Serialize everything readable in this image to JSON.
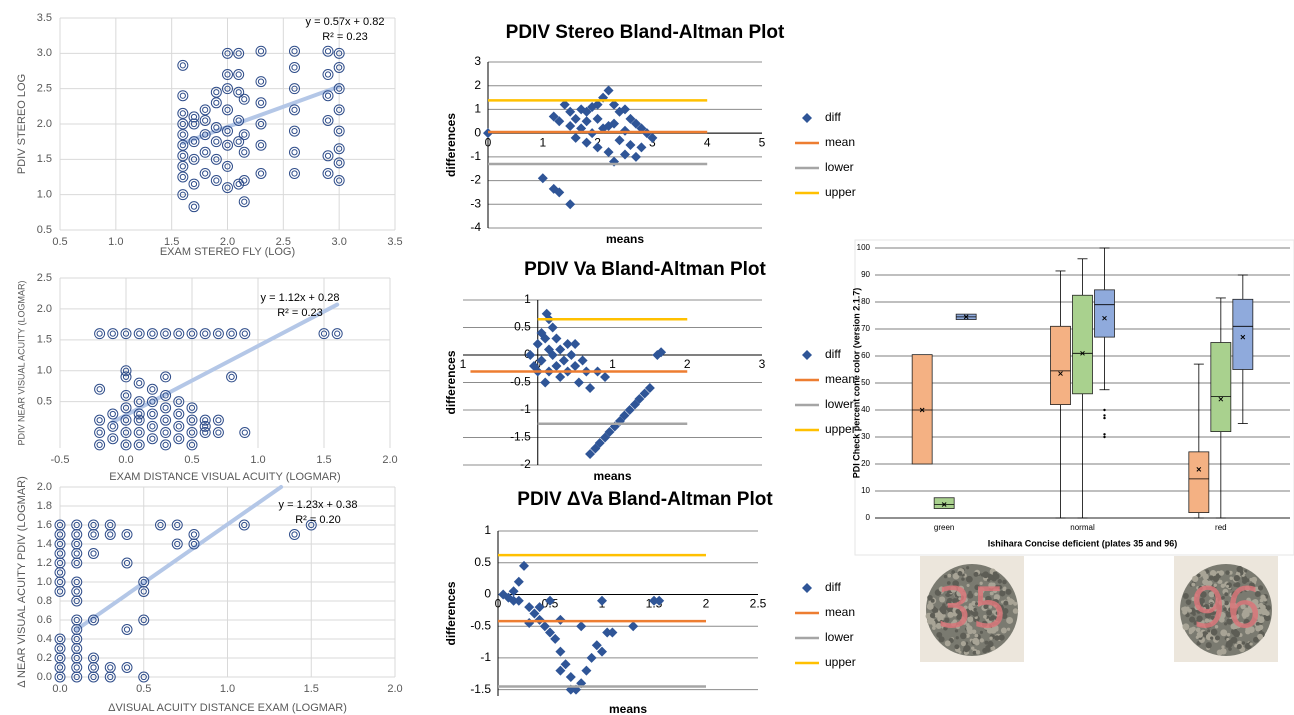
{
  "chart_data": [
    {
      "type": "scatter",
      "xlabel": "EXAM STEREO FLY (LOG)",
      "ylabel": "PDIV STEREO LOG",
      "xlim": [
        0.5,
        3.5
      ],
      "ylim": [
        0.5,
        3.5
      ],
      "xticks": [
        0.5,
        {
          "value": 1,
          "label": "1.0"
        },
        1.5,
        {
          "value": 2,
          "label": "2.0"
        },
        2.5,
        {
          "value": 3,
          "label": "3.0"
        },
        3.5
      ],
      "yticks": [
        0.5,
        {
          "value": 1,
          "label": "1.0"
        },
        1.5,
        {
          "value": 2,
          "label": "2.0"
        },
        2.5,
        {
          "value": 3,
          "label": "3.0"
        },
        3.5
      ],
      "grid": "both",
      "grid_color": "#d9d9d9",
      "color": "#2f4d8a",
      "xaxis_position": "bottom",
      "x": [
        1.6,
        1.6,
        1.6,
        1.6,
        1.6,
        1.6,
        1.6,
        1.6,
        1.6,
        1.6,
        1.7,
        1.7,
        1.7,
        1.7,
        1.7,
        1.7,
        1.8,
        1.8,
        1.8,
        1.8,
        1.8,
        1.9,
        1.9,
        1.9,
        1.9,
        1.9,
        1.9,
        2.0,
        2.0,
        2.0,
        2.0,
        2.0,
        2.0,
        2.0,
        2.0,
        2.1,
        2.1,
        2.1,
        2.1,
        2.1,
        2.1,
        2.15,
        2.15,
        2.15,
        2.15,
        2.15,
        2.3,
        2.3,
        2.3,
        2.3,
        2.3,
        2.3,
        2.6,
        2.6,
        2.6,
        2.6,
        2.6,
        2.6,
        2.6,
        2.9,
        2.9,
        2.9,
        2.9,
        2.9,
        2.9,
        3.0,
        3.0,
        3.0,
        3.0,
        3.0,
        3.0,
        3.0,
        3.0
      ],
      "values": [
        1.0,
        1.25,
        1.4,
        1.55,
        1.7,
        1.85,
        2.0,
        2.15,
        2.4,
        2.83,
        0.83,
        1.15,
        1.5,
        1.75,
        2.0,
        2.1,
        1.3,
        1.6,
        1.85,
        2.05,
        2.2,
        1.2,
        1.5,
        1.75,
        1.95,
        2.3,
        2.45,
        1.1,
        1.4,
        1.7,
        1.9,
        2.2,
        2.5,
        2.7,
        3.0,
        1.15,
        1.75,
        2.05,
        2.45,
        2.7,
        3.0,
        0.9,
        1.2,
        1.6,
        1.85,
        2.35,
        1.3,
        1.7,
        2.0,
        2.3,
        2.6,
        3.03,
        1.3,
        1.6,
        1.9,
        2.2,
        2.5,
        2.8,
        3.03,
        1.3,
        1.55,
        2.05,
        2.4,
        2.7,
        3.03,
        1.2,
        1.45,
        1.65,
        1.9,
        2.2,
        2.5,
        2.8,
        3.0
      ],
      "trendline": {
        "color": "#b4c7e7",
        "x": [
          1.6,
          3.0
        ],
        "y": [
          1.73,
          2.53
        ]
      },
      "annotations": [
        "y = 0.57x + 0.82",
        "R² = 0.23"
      ]
    },
    {
      "type": "scatter",
      "xlabel": "EXAM DISTANCE VISUAL ACUITY (LOGMAR)",
      "ylabel": "PDIV NEAR VISUAL ACUITY (LOGMAR)",
      "xlim": [
        -0.5,
        2.0
      ],
      "ylim": [
        -0.25,
        2.5
      ],
      "xticks": [
        -0.5,
        {
          "value": 0,
          "label": "0.0"
        },
        0.5,
        {
          "value": 1,
          "label": "1.0"
        },
        1.5,
        {
          "value": 2,
          "label": "2.0"
        }
      ],
      "yticks": [
        0.5,
        {
          "value": 1,
          "label": "1.0"
        },
        1.5,
        {
          "value": 2,
          "label": "2.0"
        },
        2.5
      ],
      "grid": "both",
      "grid_color": "#d9d9d9",
      "color": "#2f4d8a",
      "xaxis_position": "bottom",
      "x": [
        -0.2,
        -0.1,
        0,
        0.1,
        0.2,
        0.3,
        0.4,
        0.5,
        0.6,
        0.7,
        0.8,
        0.9,
        1.5,
        1.6,
        -0.2,
        -0.2,
        -0.2,
        -0.2,
        -0.1,
        -0.1,
        -0.1,
        0,
        0,
        0,
        0,
        0,
        0,
        0,
        0.1,
        0.1,
        0.1,
        0.1,
        0.1,
        0.1,
        0.2,
        0.2,
        0.2,
        0.2,
        0.2,
        0.3,
        0.3,
        0.3,
        0.3,
        0.3,
        0.3,
        0.4,
        0.4,
        0.4,
        0.4,
        0.5,
        0.5,
        0.5,
        0.5,
        0.6,
        0.6,
        0.6,
        0.7,
        0.7,
        0.8,
        0.9
      ],
      "values": [
        1.6,
        1.6,
        1.6,
        1.6,
        1.6,
        1.6,
        1.6,
        1.6,
        1.6,
        1.6,
        1.6,
        1.6,
        1.6,
        1.6,
        -0.2,
        0,
        0.2,
        0.7,
        -0.1,
        0.1,
        0.3,
        -0.2,
        0,
        0.2,
        0.4,
        0.6,
        0.9,
        1.0,
        -0.2,
        0,
        0.2,
        0.3,
        0.5,
        0.8,
        -0.1,
        0.1,
        0.3,
        0.5,
        0.7,
        -0.2,
        0,
        0.2,
        0.4,
        0.6,
        0.9,
        -0.1,
        0.1,
        0.3,
        0.5,
        -0.2,
        0,
        0.2,
        0.4,
        0,
        0.1,
        0.2,
        0,
        0.2,
        0.9,
        0
      ],
      "trendline": {
        "color": "#b4c7e7",
        "x": [
          -0.1,
          1.6
        ],
        "y": [
          0.17,
          2.07
        ]
      },
      "annotations": [
        "y = 1.12x + 0.28",
        "R² = 0.23"
      ]
    },
    {
      "type": "scatter",
      "xlabel": "ΔVISUAL ACUITY DISTANCE EXAM (LOGMAR)",
      "ylabel": "Δ NEAR VISUAL ACUITY PDIV (LOGMAR)",
      "xlim": [
        0,
        2.0
      ],
      "ylim": [
        0,
        2.0
      ],
      "xticks": [
        {
          "value": 0,
          "label": "0.0"
        },
        0.5,
        {
          "value": 1,
          "label": "1.0"
        },
        1.5,
        {
          "value": 2,
          "label": "2.0"
        }
      ],
      "yticks": [
        {
          "value": 0,
          "label": "0.0"
        },
        0.2,
        0.4,
        0.6,
        0.8,
        {
          "value": 1,
          "label": "1.0"
        },
        1.2,
        1.4,
        1.6,
        1.8,
        {
          "value": 2,
          "label": "2.0"
        }
      ],
      "grid": "both",
      "grid_color": "#d9d9d9",
      "color": "#2f4d8a",
      "xaxis_position": "bottom",
      "x": [
        0,
        0,
        0,
        0,
        0,
        0,
        0,
        0,
        0,
        0,
        0,
        0,
        0,
        0.1,
        0.1,
        0.1,
        0.1,
        0.1,
        0.1,
        0.1,
        0.1,
        0.1,
        0.1,
        0.1,
        0.1,
        0.1,
        0.1,
        0.1,
        0.2,
        0.2,
        0.2,
        0.2,
        0.2,
        0.2,
        0.2,
        0.3,
        0.3,
        0.3,
        0.3,
        0.4,
        0.4,
        0.4,
        0.4,
        0.5,
        0.5,
        0.5,
        0.5,
        0.6,
        0.7,
        0.7,
        0.8,
        0.8,
        1.1,
        1.4,
        1.5
      ],
      "values": [
        0,
        0.1,
        0.2,
        0.3,
        0.4,
        0.9,
        1.0,
        1.1,
        1.2,
        1.3,
        1.4,
        1.5,
        1.6,
        0,
        0.1,
        0.2,
        0.3,
        0.4,
        0.5,
        0.6,
        0.8,
        0.9,
        1.0,
        1.2,
        1.3,
        1.4,
        1.5,
        1.6,
        0,
        0.1,
        0.2,
        0.6,
        1.3,
        1.5,
        1.6,
        0,
        0.1,
        1.5,
        1.6,
        0.1,
        0.5,
        1.2,
        1.5,
        0,
        0.6,
        0.9,
        1.0,
        1.6,
        1.4,
        1.6,
        1.4,
        1.5,
        1.6,
        1.5,
        1.6
      ],
      "trendline": {
        "color": "#b4c7e7",
        "x": [
          0.1,
          1.32
        ],
        "y": [
          0.5,
          2.0
        ]
      },
      "annotations": [
        "y = 1.23x + 0.38",
        "R² = 0.20"
      ]
    },
    {
      "type": "scatter",
      "title": "PDIV Stereo Bland-Altman Plot",
      "xlabel": "means",
      "ylabel": "differences",
      "xlim": [
        0,
        5
      ],
      "ylim": [
        -4,
        3
      ],
      "xticks": [
        0,
        1,
        2,
        3,
        4,
        5
      ],
      "yticks": [
        -4,
        -3,
        -2,
        -1,
        0,
        1,
        2,
        3
      ],
      "grid": "y",
      "grid_color": "#8c8c8c",
      "xaxis_position": "zero",
      "series": [
        {
          "name": "diff",
          "color": "#2f5597",
          "mode": "markers",
          "x": [
            0,
            1.0,
            1.2,
            1.3,
            1.5,
            1.2,
            1.3,
            1.4,
            1.5,
            1.5,
            1.6,
            1.6,
            1.7,
            1.7,
            1.8,
            1.8,
            1.9,
            1.9,
            2.0,
            2.0,
            2.1,
            2.1,
            2.2,
            2.2,
            2.3,
            2.3,
            2.3,
            2.4,
            2.4,
            2.5,
            2.5,
            2.5,
            2.6,
            2.6,
            2.7,
            2.7,
            2.8,
            2.8,
            2.9,
            3.0,
            2.0,
            1.8,
            2.2
          ],
          "values": [
            0,
            -1.9,
            -2.35,
            -2.5,
            -3.0,
            0.7,
            0.5,
            1.2,
            0.9,
            0.3,
            0.6,
            -0.2,
            1.0,
            0.2,
            0.5,
            -0.4,
            1.1,
            0.0,
            0.6,
            -0.6,
            1.5,
            0.2,
            1.8,
            -0.8,
            1.2,
            0.4,
            -1.2,
            0.9,
            -0.3,
            1.0,
            0.1,
            -0.9,
            0.6,
            -0.5,
            0.4,
            -1.0,
            0.2,
            -0.6,
            0.0,
            -0.2,
            1.2,
            0.9,
            0.3
          ]
        },
        {
          "name": "mean",
          "color": "#ed7d31",
          "mode": "line",
          "x": [
            0,
            4
          ],
          "values": [
            0.05,
            0.05
          ]
        },
        {
          "name": "lower",
          "color": "#a5a5a5",
          "mode": "line",
          "x": [
            0,
            4
          ],
          "values": [
            -1.3,
            -1.3
          ]
        },
        {
          "name": "upper",
          "color": "#ffc000",
          "mode": "line",
          "x": [
            0,
            4
          ],
          "values": [
            1.38,
            1.38
          ]
        }
      ]
    },
    {
      "type": "scatter",
      "title": "PDIV Va Bland-Altman Plot",
      "xlabel": "means",
      "ylabel": "differences",
      "xlim": [
        -1,
        3
      ],
      "ylim": [
        -2,
        1
      ],
      "xticks": [
        {
          "value": -1,
          "label": "1"
        },
        0,
        1,
        2,
        3
      ],
      "yticks": [
        -2,
        -1.5,
        -1,
        -0.5,
        0,
        0.5,
        1
      ],
      "grid": "y",
      "grid_color": "#8c8c8c",
      "xaxis_position": "zero",
      "series": [
        {
          "name": "diff",
          "color": "#2f5597",
          "mode": "markers",
          "x": [
            -0.1,
            -0.05,
            0,
            0,
            0.05,
            0.05,
            0.1,
            0.1,
            0.15,
            0.15,
            0.2,
            0.2,
            0.25,
            0.25,
            0.3,
            0.3,
            0.35,
            0.4,
            0.4,
            0.45,
            0.5,
            0.55,
            0.6,
            0.65,
            0.12,
            0.15,
            0.5,
            0.7,
            0.8,
            0.9,
            1.6,
            1.65,
            0.7,
            0.77,
            0.83,
            0.9,
            0.96,
            1.03,
            1.1,
            1.16,
            1.23,
            1.3,
            1.36,
            1.43,
            1.5
          ],
          "values": [
            0,
            -0.2,
            0.2,
            -0.3,
            0.4,
            -0.1,
            0.3,
            -0.5,
            0.1,
            -0.3,
            0.5,
            0,
            -0.2,
            0.3,
            0.1,
            -0.4,
            -0.1,
            0.2,
            -0.3,
            0,
            -0.2,
            -0.5,
            -0.1,
            -0.3,
            0.75,
            0.65,
            0.2,
            -0.6,
            -0.3,
            -0.4,
            0,
            0.05,
            -1.8,
            -1.7,
            -1.6,
            -1.5,
            -1.4,
            -1.3,
            -1.2,
            -1.1,
            -1.0,
            -0.9,
            -0.8,
            -0.7,
            -0.6
          ]
        },
        {
          "name": "mean",
          "color": "#ed7d31",
          "mode": "line",
          "x": [
            -0.9,
            2
          ],
          "values": [
            -0.3,
            -0.3
          ]
        },
        {
          "name": "lower",
          "color": "#a5a5a5",
          "mode": "line",
          "x": [
            0,
            2
          ],
          "values": [
            -1.25,
            -1.25
          ]
        },
        {
          "name": "upper",
          "color": "#ffc000",
          "mode": "line",
          "x": [
            0,
            2
          ],
          "values": [
            0.65,
            0.65
          ]
        }
      ]
    },
    {
      "type": "scatter",
      "title": "PDIV ΔVa Bland-Altman Plot",
      "xlabel": "means",
      "ylabel": "differences",
      "xlim": [
        0,
        2.5
      ],
      "ylim": [
        -1.6,
        1
      ],
      "xticks": [
        0,
        0.5,
        1,
        1.5,
        2,
        2.5
      ],
      "yticks": [
        -1.5,
        -1,
        -0.5,
        0,
        0.5,
        1
      ],
      "grid": "y",
      "grid_color": "#8c8c8c",
      "xaxis_position": "zero",
      "series": [
        {
          "name": "diff",
          "color": "#2f5597",
          "mode": "markers",
          "x": [
            0.05,
            0.1,
            0.15,
            0.2,
            0.25,
            0.2,
            0.3,
            0.35,
            0.4,
            0.4,
            0.45,
            0.5,
            0.5,
            0.55,
            0.6,
            0.6,
            0.65,
            0.7,
            0.75,
            0.7,
            0.8,
            0.85,
            0.9,
            0.95,
            1.0,
            1.05,
            1.1,
            0.3,
            0.8,
            1.0,
            1.3,
            1.5,
            1.55,
            0.15,
            0.6
          ],
          "values": [
            0,
            -0.05,
            0.05,
            0.2,
            0.45,
            -0.1,
            -0.2,
            -0.3,
            -0.2,
            -0.4,
            -0.5,
            -0.1,
            -0.6,
            -0.7,
            -0.4,
            -0.9,
            -1.1,
            -1.3,
            -1.5,
            -1.5,
            -1.4,
            -1.2,
            -1.0,
            -0.8,
            -0.9,
            -0.6,
            -0.6,
            -0.45,
            -0.5,
            -0.1,
            -0.5,
            -0.1,
            -0.1,
            -0.1,
            -1.2
          ]
        },
        {
          "name": "mean",
          "color": "#ed7d31",
          "mode": "line",
          "x": [
            0,
            2
          ],
          "values": [
            -0.42,
            -0.42
          ]
        },
        {
          "name": "lower",
          "color": "#a5a5a5",
          "mode": "line",
          "x": [
            0,
            2
          ],
          "values": [
            -1.45,
            -1.45
          ]
        },
        {
          "name": "upper",
          "color": "#ffc000",
          "mode": "line",
          "x": [
            0,
            2
          ],
          "values": [
            0.62,
            0.62
          ]
        }
      ]
    },
    {
      "type": "box",
      "ylabel": "PDI Check percent cone color (version 2.1.7)",
      "xlabel": "Ishihara Concise deficient (plates 35 and 96)",
      "categories": [
        "green",
        "normal",
        "red"
      ],
      "ylim": [
        0,
        100
      ],
      "yticks": [
        0,
        10,
        20,
        30,
        40,
        50,
        60,
        70,
        80,
        90,
        100
      ],
      "grid": "y",
      "grid_color": "#000000",
      "series": [
        {
          "color": "#f4b183",
          "min": [
            20,
            0,
            0
          ],
          "q1": [
            20,
            42,
            2
          ],
          "median": [
            40,
            54.5,
            14.5
          ],
          "q3": [
            60.5,
            71,
            24.5
          ],
          "max": [
            60.5,
            91.5,
            57
          ],
          "mean": [
            40,
            53.5,
            18
          ]
        },
        {
          "color": "#a9d18e",
          "min": [
            3.5,
            0,
            0
          ],
          "q1": [
            3.5,
            46,
            32
          ],
          "median": [
            5,
            61,
            45
          ],
          "q3": [
            7.5,
            82.5,
            65
          ],
          "max": [
            7.5,
            96,
            81.5
          ],
          "mean": [
            5,
            61,
            44
          ]
        },
        {
          "color": "#8faadc",
          "min": [
            73.5,
            47.5,
            35
          ],
          "q1": [
            73.5,
            67,
            55
          ],
          "median": [
            74.5,
            79,
            71
          ],
          "q3": [
            75.5,
            84.5,
            81
          ],
          "max": [
            75.5,
            100,
            90
          ],
          "mean": [
            74.5,
            74,
            67
          ],
          "outliers": [
            [],
            [
              30,
              31,
              37,
              38,
              40
            ],
            []
          ]
        }
      ],
      "plates": [
        "35",
        "96"
      ]
    }
  ]
}
